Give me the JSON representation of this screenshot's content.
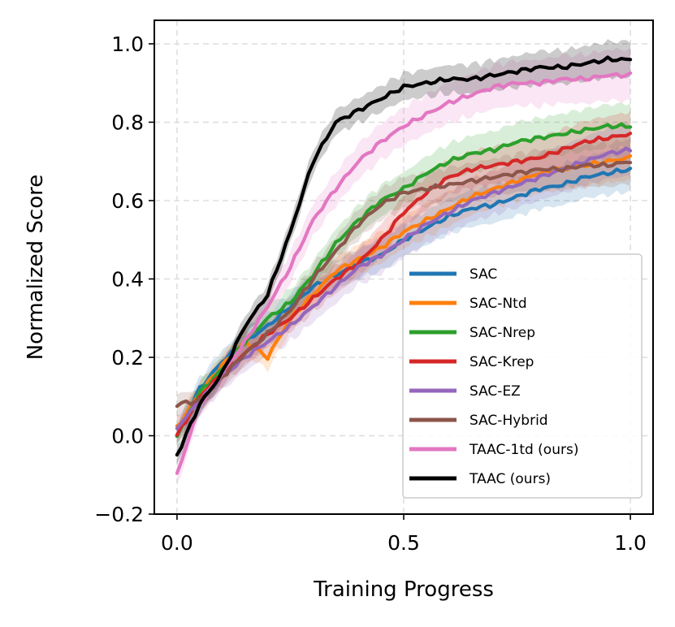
{
  "chart_data": {
    "type": "line",
    "xlabel": "Training Progress",
    "ylabel": "Normalized Score",
    "xlim": [
      -0.05,
      1.05
    ],
    "ylim": [
      -0.2,
      1.06
    ],
    "xticks": [
      0.0,
      0.5,
      1.0
    ],
    "xtick_labels": [
      "0.0",
      "0.5",
      "1.0"
    ],
    "yticks": [
      -0.2,
      0.0,
      0.2,
      0.4,
      0.6,
      0.8,
      1.0
    ],
    "ytick_labels": [
      "−0.2",
      "0.0",
      "0.2",
      "0.4",
      "0.6",
      "0.8",
      "1.0"
    ],
    "grid": true,
    "legend_position": "lower-right",
    "x": [
      0.0,
      0.05,
      0.1,
      0.15,
      0.2,
      0.25,
      0.3,
      0.35,
      0.4,
      0.45,
      0.5,
      0.55,
      0.6,
      0.65,
      0.7,
      0.75,
      0.8,
      0.85,
      0.9,
      0.95,
      1.0
    ],
    "series": [
      {
        "name": "SAC",
        "color": "#1f77b4",
        "band": 0.05,
        "values": [
          0.0,
          0.12,
          0.19,
          0.24,
          0.28,
          0.33,
          0.38,
          0.41,
          0.44,
          0.46,
          0.5,
          0.53,
          0.56,
          0.58,
          0.59,
          0.61,
          0.63,
          0.64,
          0.66,
          0.67,
          0.68
        ]
      },
      {
        "name": "SAC-Ntd",
        "color": "#ff7f0e",
        "band": 0.05,
        "values": [
          0.02,
          0.11,
          0.18,
          0.24,
          0.2,
          0.3,
          0.36,
          0.42,
          0.45,
          0.48,
          0.52,
          0.55,
          0.58,
          0.61,
          0.63,
          0.65,
          0.67,
          0.68,
          0.69,
          0.7,
          0.71
        ]
      },
      {
        "name": "SAC-Nrep",
        "color": "#2ca02c",
        "band": 0.05,
        "values": [
          0.0,
          0.11,
          0.17,
          0.24,
          0.3,
          0.34,
          0.41,
          0.49,
          0.55,
          0.6,
          0.63,
          0.67,
          0.7,
          0.72,
          0.73,
          0.75,
          0.76,
          0.77,
          0.78,
          0.79,
          0.79
        ]
      },
      {
        "name": "SAC-Krep",
        "color": "#d62728",
        "band": 0.05,
        "values": [
          0.0,
          0.1,
          0.16,
          0.21,
          0.26,
          0.3,
          0.35,
          0.4,
          0.44,
          0.5,
          0.57,
          0.62,
          0.66,
          0.68,
          0.69,
          0.7,
          0.71,
          0.73,
          0.75,
          0.76,
          0.77
        ]
      },
      {
        "name": "SAC-EZ",
        "color": "#9467bd",
        "band": 0.06,
        "values": [
          0.02,
          0.09,
          0.15,
          0.2,
          0.24,
          0.28,
          0.33,
          0.38,
          0.43,
          0.46,
          0.5,
          0.54,
          0.57,
          0.6,
          0.62,
          0.64,
          0.66,
          0.68,
          0.7,
          0.72,
          0.73
        ]
      },
      {
        "name": "SAC-Hybrid",
        "color": "#8c564b",
        "band": 0.05,
        "values": [
          0.08,
          0.09,
          0.15,
          0.21,
          0.26,
          0.32,
          0.4,
          0.47,
          0.54,
          0.59,
          0.62,
          0.63,
          0.64,
          0.65,
          0.66,
          0.67,
          0.68,
          0.68,
          0.69,
          0.69,
          0.7
        ]
      },
      {
        "name": "TAAC-1td (ours)",
        "color": "#e377c2",
        "band": 0.06,
        "values": [
          -0.1,
          0.08,
          0.16,
          0.24,
          0.33,
          0.43,
          0.55,
          0.63,
          0.7,
          0.75,
          0.79,
          0.82,
          0.85,
          0.87,
          0.89,
          0.9,
          0.9,
          0.91,
          0.91,
          0.92,
          0.92
        ]
      },
      {
        "name": "TAAC (ours)",
        "color": "#000000",
        "band": 0.04,
        "values": [
          -0.05,
          0.08,
          0.16,
          0.28,
          0.36,
          0.52,
          0.7,
          0.8,
          0.83,
          0.86,
          0.89,
          0.9,
          0.91,
          0.91,
          0.92,
          0.93,
          0.94,
          0.94,
          0.95,
          0.96,
          0.96
        ]
      }
    ]
  }
}
